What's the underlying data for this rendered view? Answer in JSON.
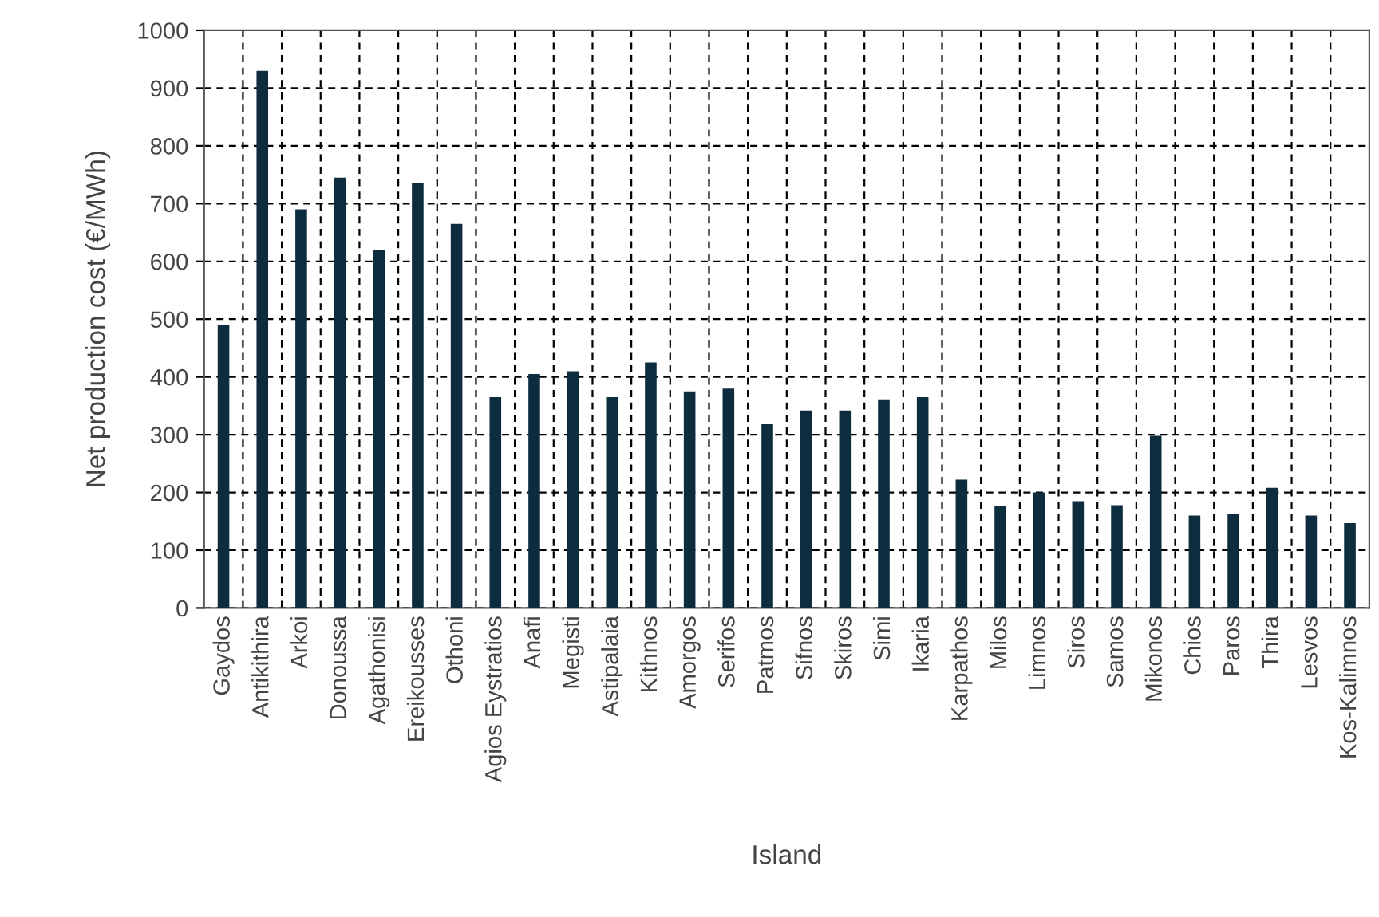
{
  "chart_data": {
    "type": "bar",
    "xlabel": "Island",
    "ylabel": "Net production cost (€/MWh)",
    "categories": [
      "Gaydos",
      "Antikithira",
      "Arkoi",
      "Donoussa",
      "Agathonisi",
      "Ereikousses",
      "Othoni",
      "Agios Eystratios",
      "Anafi",
      "Megisti",
      "Astipalaia",
      "Kithnos",
      "Amorgos",
      "Serifos",
      "Patmos",
      "Sifnos",
      "Skiros",
      "Simi",
      "Ikaria",
      "Karpathos",
      "Milos",
      "Limnos",
      "Siros",
      "Samos",
      "Mikonos",
      "Chios",
      "Paros",
      "Thira",
      "Lesvos",
      "Kos-Kalimnos"
    ],
    "values": [
      490,
      930,
      690,
      745,
      620,
      735,
      665,
      365,
      405,
      410,
      365,
      425,
      375,
      380,
      318,
      342,
      342,
      360,
      365,
      222,
      177,
      200,
      185,
      178,
      298,
      160,
      163,
      208,
      160,
      147
    ],
    "color": "#0d2d3f",
    "ylim": [
      0,
      1000
    ],
    "yticks": [
      0,
      100,
      200,
      300,
      400,
      500,
      600,
      700,
      800,
      900,
      1000
    ],
    "grid": true
  }
}
